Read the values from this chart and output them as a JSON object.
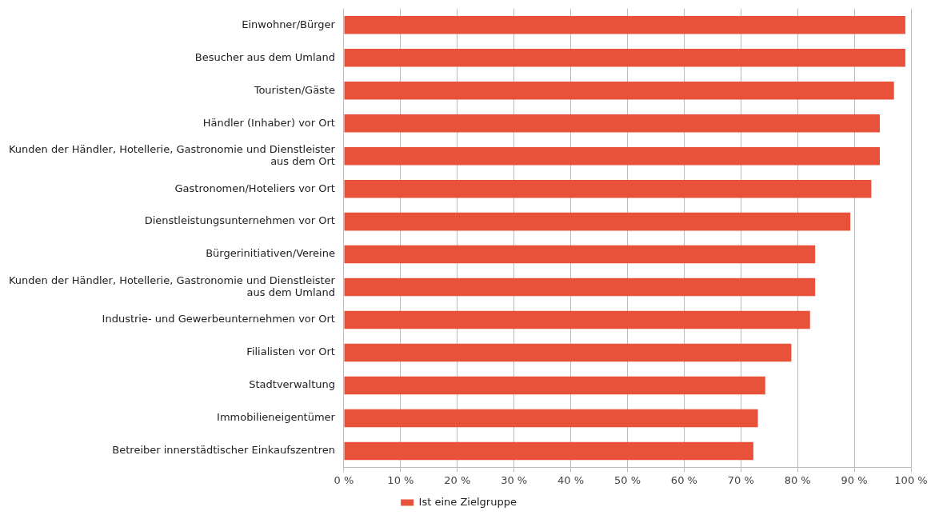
{
  "chart_data": {
    "type": "bar",
    "orientation": "horizontal",
    "categories": [
      "Einwohner/Bürger",
      "Besucher aus dem Umland",
      "Touristen/Gäste",
      "Händler (Inhaber) vor Ort",
      "Kunden der Händler, Hotellerie, Gastronomie und Dienstleister\naus dem Ort",
      "Gastronomen/Hoteliers vor Ort",
      "Dienstleistungsunternehmen vor Ort",
      "Bürgerinitiativen/Vereine",
      "Kunden der Händler, Hotellerie, Gastronomie und Dienstleister\naus dem Umland",
      "Industrie- und Gewerbeunternehmen vor Ort",
      "Filialisten vor Ort",
      "Stadtverwaltung",
      "Immobilieneigentümer",
      "Betreiber innerstädtischer Einkaufszentren"
    ],
    "series": [
      {
        "name": "Ist eine Zielgruppe",
        "color": "#e8523a",
        "values": [
          99,
          99,
          97,
          94.5,
          94.5,
          93,
          89.3,
          83.1,
          83.1,
          82.2,
          78.9,
          74.3,
          73,
          72.2
        ]
      }
    ],
    "xlim": [
      0,
      100
    ],
    "xticks": [
      {
        "value": 0,
        "label": "0 %"
      },
      {
        "value": 10,
        "label": "10 %"
      },
      {
        "value": 20,
        "label": "20 %"
      },
      {
        "value": 30,
        "label": "30 %"
      },
      {
        "value": 40,
        "label": "40 %"
      },
      {
        "value": 50,
        "label": "50 %"
      },
      {
        "value": 60,
        "label": "60 %"
      },
      {
        "value": 70,
        "label": "70 %"
      },
      {
        "value": 80,
        "label": "80 %"
      },
      {
        "value": 90,
        "label": "90 %"
      },
      {
        "value": 100,
        "label": "100 %"
      }
    ],
    "grid": "x",
    "legend": "bottom"
  }
}
